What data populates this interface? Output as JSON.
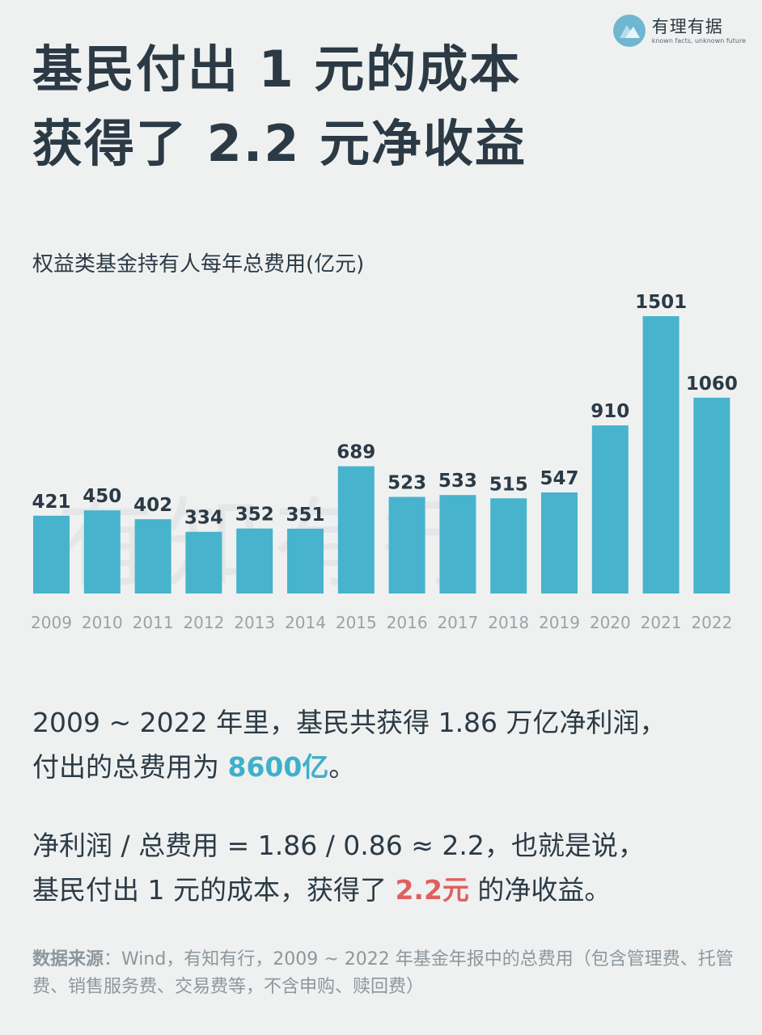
{
  "brand": {
    "name": "有理有据",
    "tagline": "known facts, unknown future",
    "logo_icon": "mountain-logo-icon"
  },
  "headline": {
    "line1": "基民付出 1 元的成本",
    "line2": "获得了 2.2 元净收益"
  },
  "watermark": "有知有行",
  "colors": {
    "bar": "#47b3cd",
    "text": "#2b3a45",
    "axis_label": "#9aa3a8",
    "highlight_blue": "#3fb0c9",
    "highlight_red": "#e06060",
    "background": "#eff1f1"
  },
  "chart_data": {
    "type": "bar",
    "title": "权益类基金持有人每年总费用(亿元)",
    "xlabel": "",
    "ylabel": "",
    "categories": [
      "2009",
      "2010",
      "2011",
      "2012",
      "2013",
      "2014",
      "2015",
      "2016",
      "2017",
      "2018",
      "2019",
      "2020",
      "2021",
      "2022"
    ],
    "values": [
      421,
      450,
      402,
      334,
      352,
      351,
      689,
      523,
      533,
      515,
      547,
      910,
      1501,
      1060
    ],
    "ylim": [
      0,
      1501
    ],
    "grid": false,
    "data_labels": true
  },
  "text": {
    "p1_line1": "2009 ~ 2022 年里，基民共获得 1.86 万亿净利润，",
    "p1_line2_prefix": "付出的总费用为 ",
    "p1_highlight": "8600亿",
    "p1_line2_suffix": "。",
    "p2_line1": "净利润 / 总费用 = 1.86 / 0.86 ≈ 2.2，也就是说，",
    "p2_line2_prefix": "基民付出 1 元的成本，获得了 ",
    "p2_highlight": "2.2元",
    "p2_line2_suffix": " 的净收益。"
  },
  "source": {
    "label": "数据来源",
    "text": "：Wind，有知有行，2009 ~ 2022 年基金年报中的总费用（包含管理费、托管费、销售服务费、交易费等，不含申购、赎回费）"
  }
}
